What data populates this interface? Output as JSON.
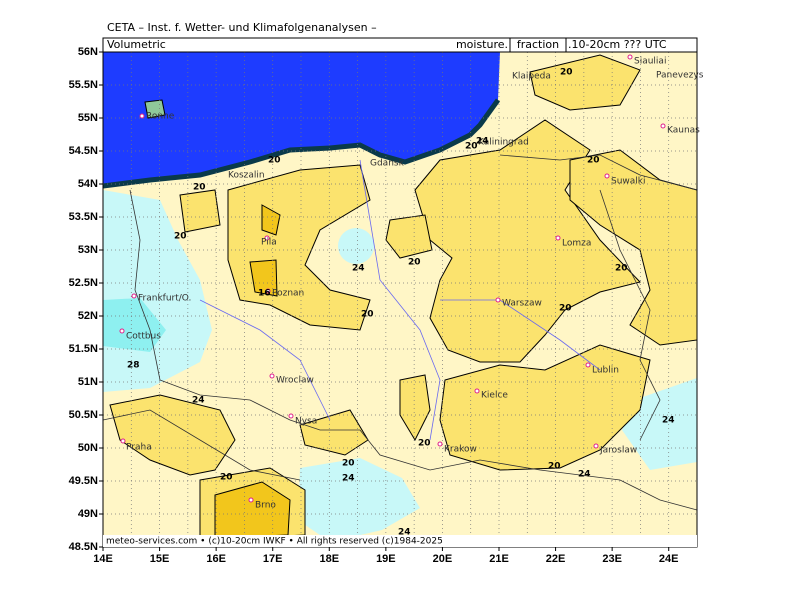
{
  "header": {
    "title": "CETA – Inst. f. Wetter- und Klimafolgenanalysen –",
    "left": "Volumetric",
    "right_prefix": "moisture.",
    "right_box": "fraction",
    "right_suffix": ".10-20cm ??? UTC"
  },
  "footer": "meteo-services.com • (c)10-20cm IWKF • All rights reserved (c)1984-2025",
  "map": {
    "lon_range": [
      14,
      24.5
    ],
    "lat_range": [
      48.5,
      56
    ],
    "lon_ticks": [
      {
        "value": 14,
        "label": "14E"
      },
      {
        "value": 15,
        "label": "15E"
      },
      {
        "value": 16,
        "label": "16E"
      },
      {
        "value": 17,
        "label": "17E"
      },
      {
        "value": 18,
        "label": "18E"
      },
      {
        "value": 19,
        "label": "19E"
      },
      {
        "value": 20,
        "label": "20E"
      },
      {
        "value": 21,
        "label": "21E"
      },
      {
        "value": 22,
        "label": "22E"
      },
      {
        "value": 23,
        "label": "23E"
      },
      {
        "value": 24,
        "label": "24E"
      }
    ],
    "lat_ticks": [
      {
        "value": 56,
        "label": "56N"
      },
      {
        "value": 55.5,
        "label": "55.5N"
      },
      {
        "value": 55,
        "label": "55N"
      },
      {
        "value": 54.5,
        "label": "54.5N"
      },
      {
        "value": 54,
        "label": "54N"
      },
      {
        "value": 53.5,
        "label": "53.5N"
      },
      {
        "value": 53,
        "label": "53N"
      },
      {
        "value": 52.5,
        "label": "52.5N"
      },
      {
        "value": 52,
        "label": "52N"
      },
      {
        "value": 51.5,
        "label": "51.5N"
      },
      {
        "value": 51,
        "label": "51N"
      },
      {
        "value": 50.5,
        "label": "50.5N"
      },
      {
        "value": 50,
        "label": "50N"
      },
      {
        "value": 49.5,
        "label": "49.5N"
      },
      {
        "value": 49,
        "label": "49N"
      },
      {
        "value": 48.5,
        "label": "48.5N"
      }
    ],
    "cities": [
      "Siauliai",
      "Panevezys",
      "Klaipeda",
      "Kaunas",
      "Ronne",
      "Kaliningrad",
      "Gdansk",
      "Suwalki",
      "Koszalin",
      "Lomza",
      "Pila",
      "Poznan",
      "Frankfurt/O.",
      "Warszaw",
      "Cottbus",
      "Lublin",
      "Wroclaw",
      "Kielce",
      "Nysa",
      "Praha",
      "Krakow",
      "Jaroslaw",
      "Brno"
    ],
    "contour_labels": [
      20,
      24,
      20,
      20,
      20,
      20,
      20,
      24,
      20,
      20,
      16,
      20,
      20,
      28,
      24,
      24,
      20,
      20,
      24,
      20,
      24,
      20,
      24
    ]
  }
}
